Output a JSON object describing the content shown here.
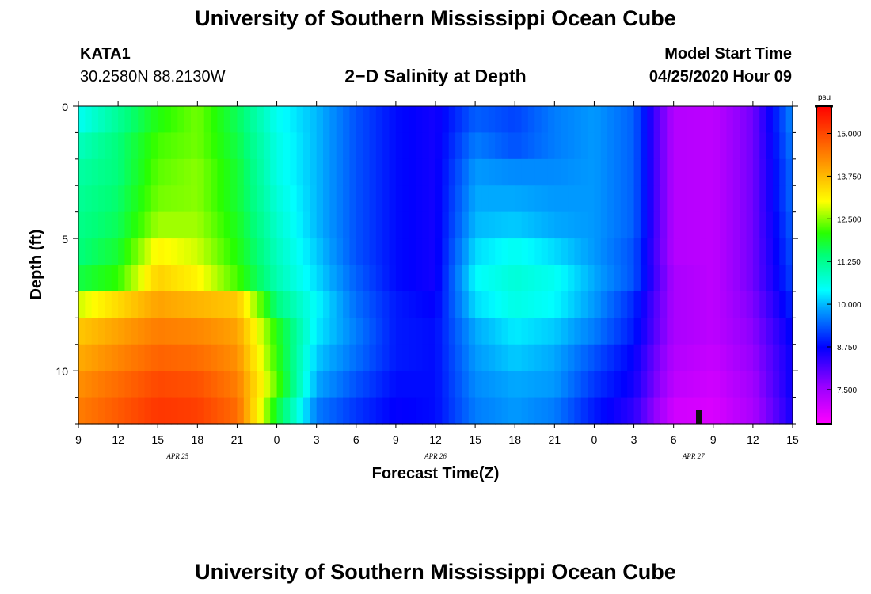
{
  "page": {
    "title_top": "University of Southern Mississippi Ocean Cube",
    "title_bottom": "University of Southern Mississippi Ocean Cube",
    "station_id": "KATA1",
    "station_coords": "30.2580N 88.2130W",
    "plot_title": "2−D Salinity at Depth",
    "model_label": "Model Start Time",
    "model_time": "04/25/2020 Hour 09"
  },
  "chart_data": {
    "type": "heatmap",
    "title": "2−D Salinity at Depth",
    "xlabel": "Forecast Time(Z)",
    "ylabel": "Depth (ft)",
    "x_hours_range": [
      0,
      54
    ],
    "y_range": [
      0,
      12
    ],
    "y_ticks": [
      0,
      5,
      10
    ],
    "x_ticks": [
      {
        "hour": 0,
        "label": "9"
      },
      {
        "hour": 3,
        "label": "12"
      },
      {
        "hour": 6,
        "label": "15"
      },
      {
        "hour": 9,
        "label": "18"
      },
      {
        "hour": 12,
        "label": "21"
      },
      {
        "hour": 15,
        "label": "0"
      },
      {
        "hour": 18,
        "label": "3"
      },
      {
        "hour": 21,
        "label": "6"
      },
      {
        "hour": 24,
        "label": "9"
      },
      {
        "hour": 27,
        "label": "12"
      },
      {
        "hour": 30,
        "label": "15"
      },
      {
        "hour": 33,
        "label": "18"
      },
      {
        "hour": 36,
        "label": "21"
      },
      {
        "hour": 39,
        "label": "0"
      },
      {
        "hour": 42,
        "label": "3"
      },
      {
        "hour": 45,
        "label": "6"
      },
      {
        "hour": 48,
        "label": "9"
      },
      {
        "hour": 51,
        "label": "12"
      },
      {
        "hour": 54,
        "label": "15"
      }
    ],
    "date_labels": [
      {
        "hour": 7.5,
        "label": "APR 25"
      },
      {
        "hour": 27,
        "label": "APR 26"
      },
      {
        "hour": 46.5,
        "label": "APR 27"
      }
    ],
    "colorbar": {
      "unit": "psu",
      "min": 6.5,
      "max": 15.8,
      "ticks": [
        {
          "value": 15.0,
          "label": "15.000"
        },
        {
          "value": 13.75,
          "label": "13.750"
        },
        {
          "value": 12.5,
          "label": "12.500"
        },
        {
          "value": 11.25,
          "label": "11.250"
        },
        {
          "value": 10.0,
          "label": "10.000"
        },
        {
          "value": 8.75,
          "label": "8.750"
        },
        {
          "value": 7.5,
          "label": "7.500"
        }
      ]
    },
    "depth_levels": [
      0.5,
      1.5,
      2.5,
      3.5,
      4.5,
      5.5,
      6.5,
      7.5,
      8.5,
      9.5,
      10.5,
      11.5
    ],
    "time_hours": [
      0,
      3,
      6,
      9,
      12,
      15,
      18,
      21,
      24,
      27,
      30,
      33,
      36,
      39,
      42,
      45,
      48,
      51,
      54
    ],
    "values": [
      [
        10.5,
        11.2,
        12.0,
        12.4,
        11.6,
        10.5,
        10.0,
        9.3,
        8.8,
        8.6,
        9.4,
        9.2,
        9.6,
        9.8,
        9.4,
        7.3,
        7.2,
        7.9,
        9.7
      ],
      [
        10.9,
        11.4,
        12.2,
        12.4,
        11.7,
        10.6,
        10.0,
        9.3,
        8.8,
        8.6,
        9.6,
        9.3,
        9.6,
        9.8,
        9.4,
        7.3,
        7.2,
        7.9,
        9.6
      ],
      [
        11.1,
        11.4,
        12.3,
        12.5,
        11.8,
        10.6,
        10.0,
        9.3,
        8.8,
        8.6,
        9.8,
        9.7,
        9.7,
        9.8,
        9.4,
        7.3,
        7.2,
        7.9,
        9.5
      ],
      [
        11.2,
        11.5,
        12.4,
        12.5,
        11.8,
        10.7,
        10.0,
        9.3,
        8.8,
        8.6,
        9.9,
        9.9,
        9.8,
        9.8,
        9.4,
        7.3,
        7.2,
        7.9,
        9.5
      ],
      [
        11.3,
        11.6,
        12.6,
        12.6,
        11.9,
        10.8,
        10.0,
        9.3,
        8.8,
        8.6,
        10.0,
        10.1,
        9.9,
        9.8,
        9.4,
        7.3,
        7.2,
        7.9,
        9.4
      ],
      [
        11.4,
        11.8,
        13.1,
        12.8,
        12.0,
        10.9,
        10.1,
        9.3,
        8.8,
        8.6,
        10.2,
        10.5,
        10.2,
        9.8,
        9.3,
        7.3,
        7.2,
        7.9,
        9.3
      ],
      [
        11.7,
        12.1,
        13.5,
        13.1,
        12.2,
        11.0,
        10.2,
        9.4,
        8.8,
        8.6,
        10.4,
        10.7,
        10.5,
        9.9,
        9.3,
        7.4,
        7.2,
        7.9,
        9.2
      ],
      [
        12.8,
        13.4,
        14.0,
        13.8,
        13.6,
        11.4,
        10.4,
        9.5,
        8.9,
        8.7,
        10.2,
        10.6,
        10.4,
        9.8,
        9.0,
        7.4,
        7.2,
        7.8,
        9.0
      ],
      [
        13.6,
        14.0,
        14.4,
        14.3,
        14.0,
        12.0,
        10.3,
        9.6,
        8.9,
        8.8,
        9.9,
        10.3,
        10.1,
        9.6,
        8.9,
        7.4,
        7.2,
        7.7,
        8.8
      ],
      [
        13.9,
        14.3,
        14.7,
        14.6,
        14.2,
        12.1,
        10.1,
        9.5,
        8.9,
        8.8,
        9.8,
        10.1,
        9.9,
        9.3,
        8.7,
        7.3,
        7.1,
        7.6,
        8.7
      ],
      [
        14.2,
        14.6,
        15.0,
        14.9,
        14.4,
        12.3,
        9.9,
        9.3,
        8.8,
        8.8,
        9.7,
        9.9,
        9.8,
        9.1,
        8.6,
        7.2,
        7.0,
        7.5,
        8.7
      ],
      [
        14.4,
        14.8,
        15.2,
        15.1,
        14.6,
        11.8,
        9.6,
        9.1,
        8.7,
        8.8,
        9.6,
        9.8,
        9.6,
        8.9,
        8.4,
        7.0,
        6.9,
        7.4,
        8.6
      ]
    ]
  }
}
